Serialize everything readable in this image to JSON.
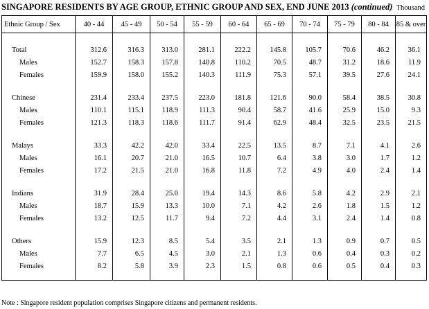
{
  "title": "SINGAPORE RESIDENTS BY AGE GROUP, ETHNIC GROUP AND SEX, END JUNE 2013",
  "title_suffix": "(continued)",
  "unit": "Thousand",
  "headers": [
    "Ethnic Group / Sex",
    "40 - 44",
    "45 - 49",
    "50 - 54",
    "55 - 59",
    "60 - 64",
    "65 - 69",
    "70 - 74",
    "75 - 79",
    "80 - 84",
    "85 & over"
  ],
  "groups": [
    {
      "name": "Total",
      "values": [
        "312.6",
        "316.3",
        "313.0",
        "281.1",
        "222.2",
        "145.8",
        "105.7",
        "70.6",
        "46.2",
        "36.1"
      ],
      "males_label": "Males",
      "males": [
        "152.7",
        "158.3",
        "157.8",
        "140.8",
        "110.2",
        "70.5",
        "48.7",
        "31.2",
        "18.6",
        "11.9"
      ],
      "females_label": "Females",
      "females": [
        "159.9",
        "158.0",
        "155.2",
        "140.3",
        "111.9",
        "75.3",
        "57.1",
        "39.5",
        "27.6",
        "24.1"
      ]
    },
    {
      "name": "Chinese",
      "values": [
        "231.4",
        "233.4",
        "237.5",
        "223.0",
        "181.8",
        "121.6",
        "90.0",
        "58.4",
        "38.5",
        "30.8"
      ],
      "males_label": "Males",
      "males": [
        "110.1",
        "115.1",
        "118.9",
        "111.3",
        "90.4",
        "58.7",
        "41.6",
        "25.9",
        "15.0",
        "9.3"
      ],
      "females_label": "Females",
      "females": [
        "121.3",
        "118.3",
        "118.6",
        "111.7",
        "91.4",
        "62.9",
        "48.4",
        "32.5",
        "23.5",
        "21.5"
      ]
    },
    {
      "name": "Malays",
      "values": [
        "33.3",
        "42.2",
        "42.0",
        "33.4",
        "22.5",
        "13.5",
        "8.7",
        "7.1",
        "4.1",
        "2.6"
      ],
      "males_label": "Males",
      "males": [
        "16.1",
        "20.7",
        "21.0",
        "16.5",
        "10.7",
        "6.4",
        "3.8",
        "3.0",
        "1.7",
        "1.2"
      ],
      "females_label": "Females",
      "females": [
        "17.2",
        "21.5",
        "21.0",
        "16.8",
        "11.8",
        "7.2",
        "4.9",
        "4.0",
        "2.4",
        "1.4"
      ]
    },
    {
      "name": "Indians",
      "values": [
        "31.9",
        "28.4",
        "25.0",
        "19.4",
        "14.3",
        "8.6",
        "5.8",
        "4.2",
        "2.9",
        "2.1"
      ],
      "males_label": "Males",
      "males": [
        "18.7",
        "15.9",
        "13.3",
        "10.0",
        "7.1",
        "4.2",
        "2.6",
        "1.8",
        "1.5",
        "1.2"
      ],
      "females_label": "Females",
      "females": [
        "13.2",
        "12.5",
        "11.7",
        "9.4",
        "7.2",
        "4.4",
        "3.1",
        "2.4",
        "1.4",
        "0.8"
      ]
    },
    {
      "name": "Others",
      "values": [
        "15.9",
        "12.3",
        "8.5",
        "5.4",
        "3.5",
        "2.1",
        "1.3",
        "0.9",
        "0.7",
        "0.5"
      ],
      "males_label": "Males",
      "males": [
        "7.7",
        "6.5",
        "4.5",
        "3.0",
        "2.1",
        "1.3",
        "0.6",
        "0.4",
        "0.3",
        "0.2"
      ],
      "females_label": "Females",
      "females": [
        "8.2",
        "5.8",
        "3.9",
        "2.3",
        "1.5",
        "0.8",
        "0.6",
        "0.5",
        "0.4",
        "0.3"
      ]
    }
  ],
  "note": "Note :  Singapore resident population comprises Singapore citizens and permanent residents."
}
